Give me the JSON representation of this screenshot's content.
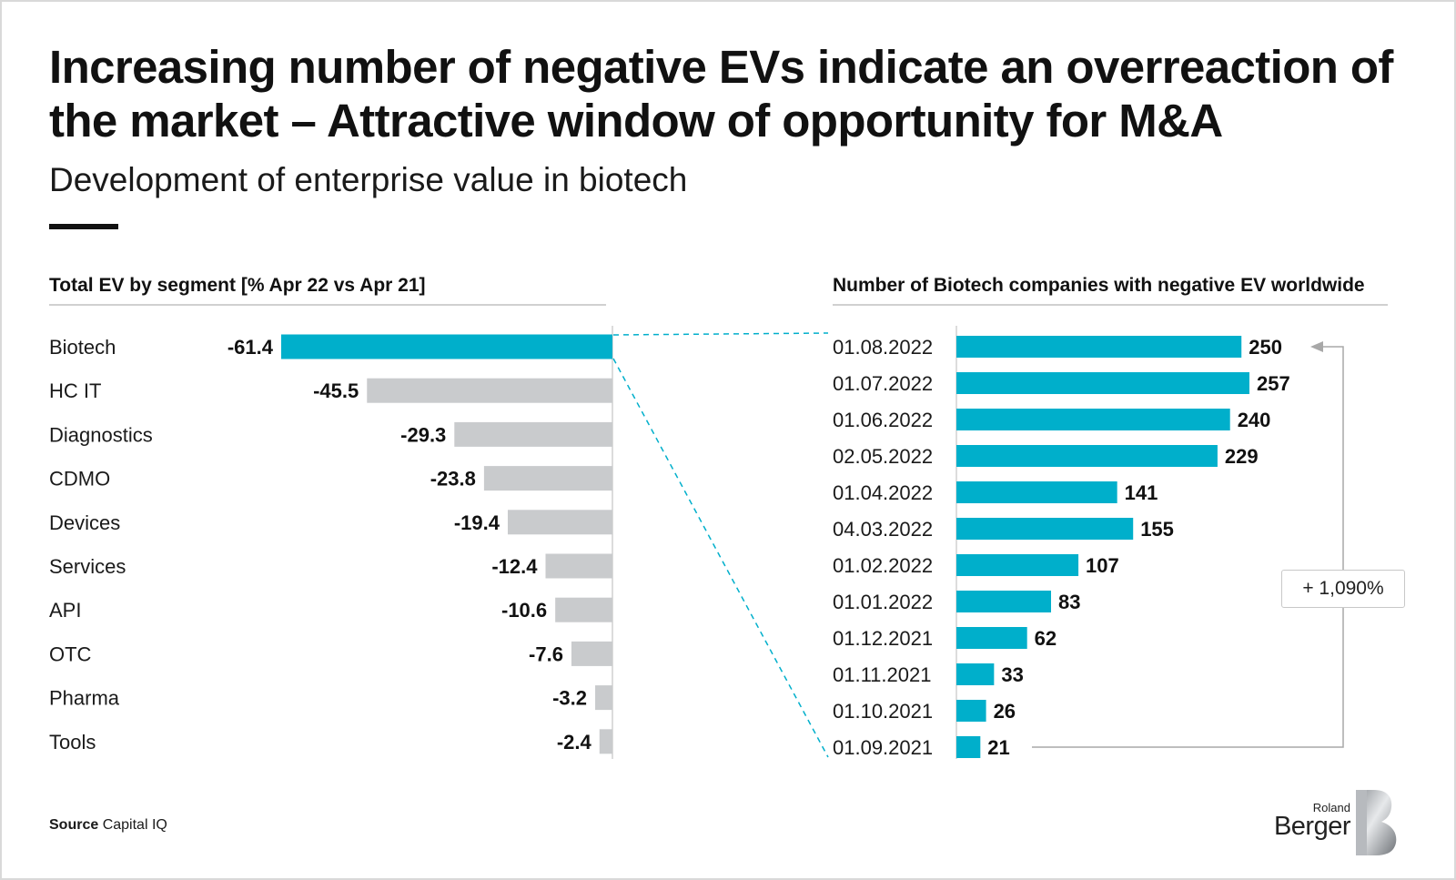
{
  "header": {
    "title": "Increasing number of negative EVs indicate an overreaction of the market – Attractive window of opportunity for M&A",
    "subtitle": "Development of enterprise value in biotech"
  },
  "chart_data": [
    {
      "type": "bar",
      "orientation": "horizontal",
      "title": "Total EV by segment [% Apr 22 vs Apr 21]",
      "categories": [
        "Biotech",
        "HC IT",
        "Diagnostics",
        "CDMO",
        "Devices",
        "Services",
        "API",
        "OTC",
        "Pharma",
        "Tools"
      ],
      "values": [
        -61.4,
        -45.5,
        -29.3,
        -23.8,
        -19.4,
        -12.4,
        -10.6,
        -7.6,
        -3.2,
        -2.4
      ],
      "value_labels": [
        "-61.4",
        "-45.5",
        "-29.3",
        "-23.8",
        "-19.4",
        "-12.4",
        "-10.6",
        "-7.6",
        "-3.2",
        "-2.4"
      ],
      "highlight_index": 0,
      "colors": {
        "highlight": "#00AFCB",
        "default": "#C9CBCD"
      },
      "xlim": [
        -61.4,
        0
      ]
    },
    {
      "type": "bar",
      "orientation": "horizontal",
      "title": "Number of Biotech companies with negative EV worldwide",
      "categories": [
        "01.08.2022",
        "01.07.2022",
        "01.06.2022",
        "02.05.2022",
        "01.04.2022",
        "04.03.2022",
        "01.02.2022",
        "01.01.2022",
        "01.12.2021",
        "01.11.2021",
        "01.10.2021",
        "01.09.2021"
      ],
      "values": [
        250,
        257,
        240,
        229,
        141,
        155,
        107,
        83,
        62,
        33,
        26,
        21
      ],
      "colors": {
        "bar": "#00AFCB"
      },
      "xlim": [
        0,
        257
      ],
      "annotation": "+ 1,090%"
    }
  ],
  "footer": {
    "source_label": "Source",
    "source_text": "Capital IQ",
    "brand_top": "Roland",
    "brand_bottom": "Berger"
  }
}
